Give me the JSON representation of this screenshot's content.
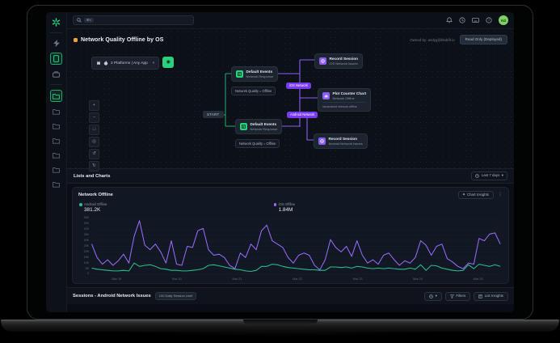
{
  "colors": {
    "green": "#2ad17f",
    "purple": "#8b5cf6",
    "purple_deep": "#7a3bf0",
    "orange": "#e8a33d",
    "avatar": "#7ed067"
  },
  "topbar": {
    "search_shortcut": "⌘K",
    "avatar_initials": "AG"
  },
  "page": {
    "title": "Network Quality Offline by OS",
    "owned_by": "Owned by: andyg@bitdrift.io",
    "readonly_button": "Read Only (Deployed)"
  },
  "platform_selector": {
    "label": "2 Platforms | Any App"
  },
  "flow": {
    "start": "START",
    "nodes": {
      "event_top": {
        "title": "Default Events",
        "subtitle": "Network Response",
        "condition": "Network Quality = Offline"
      },
      "event_bottom": {
        "title": "Default Events",
        "subtitle": "Network Response",
        "condition": "Network Quality = Offline"
      },
      "record_ios": {
        "title": "Record Session",
        "subtitle": "iOS Network Issues"
      },
      "plot_chart": {
        "title": "Plot Counter Chart",
        "subtitle": "Network Offline",
        "footer": "ios/android network.offline"
      },
      "record_android": {
        "title": "Record Session",
        "subtitle": "Android Network Issues"
      }
    },
    "edge_labels": {
      "ios": "iOS Network",
      "android": "Android Network"
    }
  },
  "lists_section": {
    "title": "Lists and Charts",
    "range_label": "Last 7 days"
  },
  "chart_card": {
    "title": "Network Offline",
    "insights_button": "Chart Insights",
    "legend": [
      {
        "label": "Android Offline",
        "value": "381.2K",
        "color": "#2bbd8e"
      },
      {
        "label": "iOS Offline",
        "value": "1.84M",
        "color": "#9a6bff"
      }
    ]
  },
  "chart_data": {
    "type": "line",
    "title": "Network Offline",
    "x_labels": [
      "Mar 19",
      "Mar 20",
      "Mar 21",
      "Mar 22",
      "Mar 23",
      "Mar 24",
      "Mar 25"
    ],
    "ylim_k": [
      0,
      50
    ],
    "yticks_k": [
      0,
      5,
      10,
      15,
      20,
      25,
      30,
      35,
      40,
      45,
      50
    ],
    "ytick_labels": [
      "0",
      "5K",
      "10K",
      "15K",
      "20K",
      "25K",
      "30K",
      "35K",
      "40K",
      "45K",
      "50K"
    ],
    "grid": true,
    "legend_position": "top",
    "series": [
      {
        "name": "Android Offline",
        "color": "#2bbd8e",
        "unit": "K",
        "values": [
          5.5,
          4.5,
          4,
          3.5,
          3,
          3,
          3.5,
          3,
          10,
          7,
          8,
          8.5,
          7,
          5,
          4.5,
          3.5,
          3.5,
          3,
          3,
          3.5,
          4,
          5,
          8,
          8.5,
          7.5,
          6.5,
          5.5,
          4.5,
          4,
          3,
          2.5,
          3.5,
          7,
          7,
          9,
          8.5,
          7,
          6,
          5.5,
          5,
          4.5,
          4,
          4,
          3.5,
          3.5,
          6.5,
          6.5,
          6,
          6.5,
          5.5,
          7,
          6.5,
          5.5,
          5,
          5.5,
          5,
          5.5,
          5,
          4.5,
          4.5,
          5.5,
          4.5,
          8.5,
          3.5,
          8,
          7.5,
          5.5,
          4.5,
          3.5,
          3,
          3.5,
          8.5,
          5,
          9,
          8,
          7,
          8.5,
          7
        ]
      },
      {
        "name": "iOS Offline",
        "color": "#9a6bff",
        "unit": "K",
        "values": [
          27,
          15,
          9,
          13,
          8,
          12,
          18,
          10,
          34,
          48,
          26,
          22,
          27,
          20,
          10,
          30,
          9,
          8,
          25,
          24,
          39,
          41,
          22,
          17,
          18,
          15,
          8,
          5,
          19,
          15,
          27,
          22,
          39,
          44,
          30,
          27,
          24,
          15,
          10,
          17,
          19,
          17,
          8,
          4,
          13,
          31,
          24,
          20,
          25,
          16,
          30,
          17,
          10,
          13,
          9,
          17,
          19,
          13,
          8,
          12,
          10,
          15,
          30,
          26,
          17,
          25,
          27,
          14,
          11,
          7,
          5,
          10,
          9,
          32,
          30,
          36,
          37,
          27
        ]
      }
    ]
  },
  "sessions_section": {
    "title": "Sessions - Android Network Issues",
    "badge": "100 Daily Session Limit",
    "filters_button": "Filters",
    "insights_button": "List Insights"
  },
  "icons": {
    "chevron_down": "▾",
    "more_vertical": "⋮",
    "sparkle": "◆",
    "zoom_in": "+",
    "zoom_out": "−",
    "fit_view": "□",
    "center_view": "◎",
    "undo": "↺",
    "redo": "↻",
    "deploy": "◉"
  }
}
